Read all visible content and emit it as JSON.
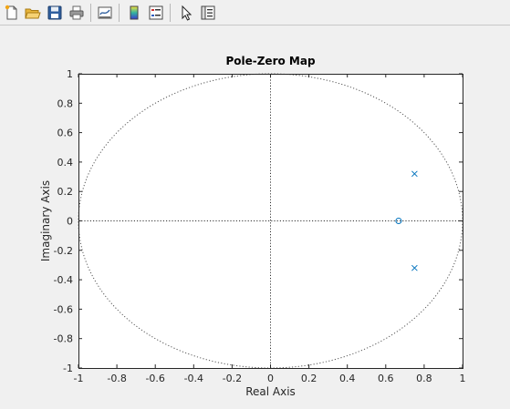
{
  "toolbar": {
    "buttons": [
      {
        "name": "new-figure-icon"
      },
      {
        "name": "open-file-icon"
      },
      {
        "name": "save-figure-icon"
      },
      {
        "name": "print-figure-icon"
      },
      {
        "name": "link-plot-icon"
      },
      {
        "name": "colorbar-icon"
      },
      {
        "name": "legend-icon"
      },
      {
        "name": "edit-plot-cursor-icon"
      },
      {
        "name": "property-inspector-icon"
      }
    ]
  },
  "chart_data": {
    "type": "scatter",
    "title": "Pole-Zero Map",
    "xlabel": "Real Axis",
    "ylabel": "Imaginary Axis",
    "xlim": [
      -1,
      1
    ],
    "ylim": [
      -1,
      1
    ],
    "x_ticks": [
      "-1",
      "-0.8",
      "-0.6",
      "-0.4",
      "-0.2",
      "0",
      "0.2",
      "0.4",
      "0.6",
      "0.8",
      "1"
    ],
    "y_ticks": [
      "-1",
      "-0.8",
      "-0.6",
      "-0.4",
      "-0.2",
      "0",
      "0.2",
      "0.4",
      "0.6",
      "0.8",
      "1"
    ],
    "unit_circle": true,
    "grid": false,
    "marker_color": "#0072bd",
    "poles": [
      {
        "x": 0.75,
        "y": 0.32
      },
      {
        "x": 0.75,
        "y": -0.32
      }
    ],
    "zeros": [
      {
        "x": 0.667,
        "y": 0
      }
    ]
  }
}
